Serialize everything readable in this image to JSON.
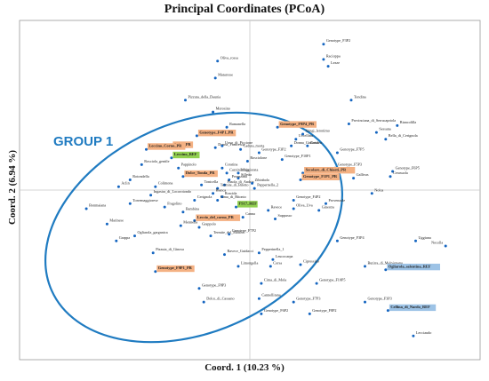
{
  "chart_data": {
    "type": "scatter",
    "title": "Principal Coordinates (PCoA)",
    "xlabel": "Coord. 1 (10.23 %)",
    "ylabel": "Coord. 2 (6.94 %)",
    "xlim": [
      -1,
      1
    ],
    "ylim": [
      -1,
      1
    ],
    "grid": false,
    "zero_lines": true,
    "marker_color": "#1565c0",
    "group_annotation": {
      "label": "GROUP 1",
      "color": "#1f7bc1"
    },
    "highlight_colors": {
      "orange": "#f4b183",
      "green": "#92d050",
      "blue": "#9dc3e6"
    },
    "points": [
      {
        "label": "Genotype_F3P2",
        "x": 0.32,
        "y": 0.86
      },
      {
        "label": "Racioppa",
        "x": 0.32,
        "y": 0.77
      },
      {
        "label": "Lezze",
        "x": 0.34,
        "y": 0.73
      },
      {
        "label": "Oliva_rossa",
        "x": -0.14,
        "y": 0.76
      },
      {
        "label": "Matarrese",
        "x": -0.15,
        "y": 0.66
      },
      {
        "label": "Pizzuta_della_Daunia",
        "x": -0.28,
        "y": 0.53
      },
      {
        "label": "Morosino",
        "x": -0.16,
        "y": 0.46
      },
      {
        "label": "Tondina",
        "x": 0.44,
        "y": 0.53
      },
      {
        "label": "Biancolilla",
        "x": 0.64,
        "y": 0.38
      },
      {
        "label": "Provinciana_di_Serracapriola",
        "x": 0.43,
        "y": 0.39
      },
      {
        "label": "Sessana",
        "x": 0.55,
        "y": 0.34
      },
      {
        "label": "Bella_di_Cerignola",
        "x": 0.59,
        "y": 0.3
      },
      {
        "label": "Ramanella",
        "x": -0.1,
        "y": 0.37
      },
      {
        "label": "Genotype_F4P1_PR",
        "x": -0.23,
        "y": 0.32,
        "highlight": "orange"
      },
      {
        "label": "Genotype_F9P4_PR",
        "x": 0.12,
        "y": 0.37,
        "highlight": "orange"
      },
      {
        "label": "Stingi_leronimo",
        "x": 0.23,
        "y": 0.33
      },
      {
        "label": "Uccellina",
        "x": 0.2,
        "y": 0.3
      },
      {
        "label": "Carolea",
        "x": 0.25,
        "y": 0.26
      },
      {
        "label": "Donna_Giulietta",
        "x": 0.18,
        "y": 0.26
      },
      {
        "label": "Genotype_F7P5",
        "x": 0.38,
        "y": 0.22
      },
      {
        "label": "Genotype_F5P3",
        "x": 0.37,
        "y": 0.13
      },
      {
        "label": "Donna_Francesca",
        "x": -0.15,
        "y": 0.25
      },
      {
        "label": "Genotype_F3P2",
        "x": 0.04,
        "y": 0.22
      },
      {
        "label": "Genotype_F10P1",
        "x": 0.14,
        "y": 0.18
      },
      {
        "label": "Uovo_di_Piccione",
        "x": -0.12,
        "y": 0.26
      },
      {
        "label": "Caduta_morta",
        "x": -0.04,
        "y": 0.24
      },
      {
        "label": "Rosciolone",
        "x": -0.01,
        "y": 0.17
      },
      {
        "label": "Coratina",
        "x": -0.12,
        "y": 0.13
      },
      {
        "label": "Cazzinicchio",
        "x": -0.1,
        "y": 0.1
      },
      {
        "label": "Maggiorata",
        "x": -0.05,
        "y": 0.1
      },
      {
        "label": "Silletta",
        "x": -0.05,
        "y": 0.07
      },
      {
        "label": "Peranzana",
        "x": -0.09,
        "y": 0.06
      },
      {
        "label": "Pasola_di_Andria",
        "x": -0.11,
        "y": 0.03
      },
      {
        "label": "Termite_di_Bitetto",
        "x": -0.14,
        "y": 0.01
      },
      {
        "label": "Spina_PR",
        "x": -0.34,
        "y": 0.25,
        "highlight": "orange"
      },
      {
        "label": "Leccino_REF",
        "x": -0.34,
        "y": 0.19,
        "highlight": "green"
      },
      {
        "label": "Leccino_Corno_PR",
        "x": -0.45,
        "y": 0.24,
        "highlight": "orange"
      },
      {
        "label": "Pappinolo",
        "x": -0.31,
        "y": 0.13
      },
      {
        "label": "Dolce_Tonda_PR",
        "x": -0.29,
        "y": 0.08,
        "highlight": "orange"
      },
      {
        "label": "Tonicella",
        "x": -0.21,
        "y": 0.03
      },
      {
        "label": "Rosciola_gentile",
        "x": -0.47,
        "y": 0.15
      },
      {
        "label": "Rotondella",
        "x": -0.52,
        "y": 0.06
      },
      {
        "label": "Colimona",
        "x": -0.41,
        "y": 0.02
      },
      {
        "label": "Aclin",
        "x": -0.57,
        "y": 0.02
      },
      {
        "label": "Zibinbolo",
        "x": 0.01,
        "y": 0.04
      },
      {
        "label": "Pappernella_2",
        "x": 0.02,
        "y": 0.01
      },
      {
        "label": "Secolare_di_Chiaeti_PR",
        "x": 0.23,
        "y": 0.1,
        "highlight": "orange"
      },
      {
        "label": "Genotype_F1P1_PR",
        "x": 0.22,
        "y": 0.06,
        "highlight": "orange"
      },
      {
        "label": "Gallivas",
        "x": 0.45,
        "y": 0.07
      },
      {
        "label": "Genotype_F6P5",
        "x": 0.62,
        "y": 0.11
      },
      {
        "label": "Cerasuola",
        "x": 0.61,
        "y": 0.08
      },
      {
        "label": "Nolca",
        "x": 0.53,
        "y": -0.02
      },
      {
        "label": "Ingastra_di_Locorotondo",
        "x": -0.43,
        "y": -0.03
      },
      {
        "label": "Bianca",
        "x": -0.16,
        "y": -0.02
      },
      {
        "label": "Cerignola",
        "x": -0.24,
        "y": -0.06
      },
      {
        "label": "Roscida",
        "x": -0.12,
        "y": -0.04
      },
      {
        "label": "Cima_di_Bitonto",
        "x": -0.14,
        "y": -0.06
      },
      {
        "label": "Torremaggiorese",
        "x": -0.52,
        "y": -0.08
      },
      {
        "label": "Bonmaiana",
        "x": -0.71,
        "y": -0.11
      },
      {
        "label": "Fragolino",
        "x": -0.37,
        "y": -0.1
      },
      {
        "label": "Bambina",
        "x": -0.29,
        "y": -0.13
      },
      {
        "label": "FS17_REF",
        "x": -0.06,
        "y": -0.1,
        "highlight": "green"
      },
      {
        "label": "Ravece",
        "x": 0.08,
        "y": -0.12
      },
      {
        "label": "Canna",
        "x": -0.03,
        "y": -0.16
      },
      {
        "label": "Genotype_F4P2",
        "x": 0.19,
        "y": -0.06
      },
      {
        "label": "Oliva_Uva",
        "x": 0.19,
        "y": -0.11
      },
      {
        "label": "Provenzale",
        "x": 0.33,
        "y": -0.08
      },
      {
        "label": "Ginestra",
        "x": 0.3,
        "y": -0.12
      },
      {
        "label": "Sappusso",
        "x": 0.11,
        "y": -0.17
      },
      {
        "label": "Leccio_del_corno_PR",
        "x": -0.24,
        "y": -0.18,
        "highlight": "orange"
      },
      {
        "label": "Marinese",
        "x": -0.62,
        "y": -0.2
      },
      {
        "label": "Mennella",
        "x": -0.3,
        "y": -0.21
      },
      {
        "label": "Grappolo",
        "x": -0.22,
        "y": -0.22
      },
      {
        "label": "Ogliarola_garganica",
        "x": -0.5,
        "y": -0.27
      },
      {
        "label": "Grappa",
        "x": -0.58,
        "y": -0.3
      },
      {
        "label": "Termite_del_Mottico",
        "x": -0.17,
        "y": -0.27
      },
      {
        "label": "Genotype_F7P2",
        "x": -0.09,
        "y": -0.26
      },
      {
        "label": "Genotype_F3P4",
        "x": 0.38,
        "y": -0.3
      },
      {
        "label": "Uggiana",
        "x": 0.72,
        "y": -0.3
      },
      {
        "label": "Nocella",
        "x": 0.85,
        "y": -0.33
      },
      {
        "label": "Pizzuta_di_Ginosa",
        "x": -0.42,
        "y": -0.37
      },
      {
        "label": "Genotype_F9P1_PR",
        "x": -0.41,
        "y": -0.48,
        "highlight": "orange"
      },
      {
        "label": "Ravece_Guidacci",
        "x": -0.11,
        "y": -0.38
      },
      {
        "label": "Limongella",
        "x": -0.05,
        "y": -0.45
      },
      {
        "label": "Pepperinella_1",
        "x": 0.04,
        "y": -0.37
      },
      {
        "label": "Leucocarpa",
        "x": 0.1,
        "y": -0.41
      },
      {
        "label": "Corsa",
        "x": 0.09,
        "y": -0.45
      },
      {
        "label": "Cipressino",
        "x": 0.22,
        "y": -0.44
      },
      {
        "label": "Butirra_di_Melpignano",
        "x": 0.5,
        "y": -0.45
      },
      {
        "label": "Ogliarola_salentina_REF",
        "x": 0.59,
        "y": -0.47,
        "highlight": "blue"
      },
      {
        "label": "Cima_di_Mola",
        "x": 0.05,
        "y": -0.55
      },
      {
        "label": "Genotype_F10P5",
        "x": 0.29,
        "y": -0.55
      },
      {
        "label": "Genotype_F8P3",
        "x": -0.22,
        "y": -0.58
      },
      {
        "label": "Dolce_di_Cassano",
        "x": -0.2,
        "y": -0.66
      },
      {
        "label": "Cannellitana",
        "x": 0.04,
        "y": -0.64
      },
      {
        "label": "Genotype_F7P3",
        "x": 0.19,
        "y": -0.66
      },
      {
        "label": "Genotype_F6P2",
        "x": 0.05,
        "y": -0.73
      },
      {
        "label": "Genotype_F8P2",
        "x": 0.26,
        "y": -0.73
      },
      {
        "label": "Genotype_F3P3",
        "x": 0.5,
        "y": -0.66
      },
      {
        "label": "Cellina_di_Nardo_REF",
        "x": 0.6,
        "y": -0.71,
        "highlight": "blue"
      },
      {
        "label": "Lecciaudo",
        "x": 0.71,
        "y": -0.86
      }
    ]
  }
}
